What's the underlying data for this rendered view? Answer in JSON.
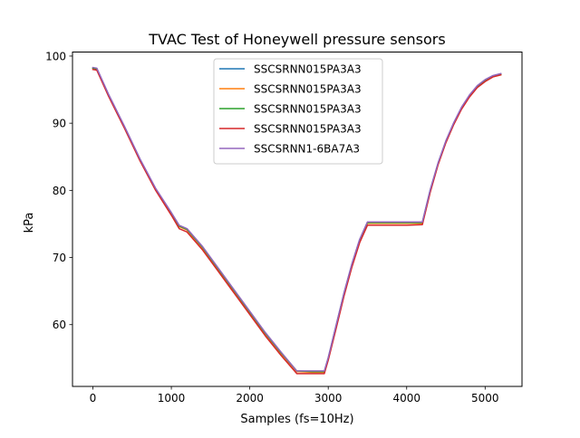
{
  "chart_data": {
    "type": "line",
    "title": "TVAC Test of Honeywell pressure sensors",
    "xlabel": "Samples (fs=10Hz)",
    "ylabel": "kPa",
    "xlim": [
      -260,
      5470
    ],
    "ylim": [
      50.8,
      100.6
    ],
    "xticks": [
      0,
      1000,
      2000,
      3000,
      4000,
      5000
    ],
    "yticks": [
      60,
      70,
      80,
      90,
      100
    ],
    "grid": false,
    "legend_position": "top-center",
    "series": [
      {
        "name": "SSCSRNN015PA3A3",
        "color": "#1f77b4",
        "x": [
          0,
          50,
          200,
          400,
          600,
          800,
          1000,
          1100,
          1200,
          1400,
          1600,
          1800,
          2000,
          2200,
          2400,
          2600,
          2800,
          2950,
          3000,
          3100,
          3200,
          3300,
          3400,
          3500,
          3560,
          4000,
          4200,
          4300,
          4400,
          4500,
          4600,
          4700,
          4800,
          4900,
          5000,
          5100,
          5200
        ],
        "y": [
          98.2,
          98.1,
          94.2,
          89.5,
          84.6,
          80.2,
          76.6,
          74.7,
          74.2,
          71.5,
          68.3,
          65.1,
          61.9,
          58.7,
          55.8,
          53.0,
          53.0,
          53.0,
          55.0,
          59.8,
          64.6,
          68.9,
          72.6,
          75.2,
          75.2,
          75.2,
          75.2,
          80.0,
          84.0,
          87.3,
          90.0,
          92.3,
          94.1,
          95.5,
          96.4,
          97.0,
          97.3
        ]
      },
      {
        "name": "SSCSRNN015PA3A3",
        "color": "#ff7f0e",
        "x": [
          0,
          50,
          200,
          400,
          600,
          800,
          1000,
          1100,
          1200,
          1400,
          1600,
          1800,
          2000,
          2200,
          2400,
          2600,
          2800,
          2950,
          3000,
          3100,
          3200,
          3300,
          3400,
          3500,
          3560,
          4000,
          4200,
          4300,
          4400,
          4500,
          4600,
          4700,
          4800,
          4900,
          5000,
          5100,
          5200
        ],
        "y": [
          98.2,
          98.1,
          94.1,
          89.4,
          84.5,
          80.1,
          76.5,
          74.6,
          74.1,
          71.4,
          68.2,
          65.0,
          61.8,
          58.6,
          55.7,
          53.0,
          52.9,
          52.9,
          54.9,
          59.7,
          64.5,
          68.8,
          72.5,
          75.1,
          75.1,
          75.1,
          75.1,
          79.9,
          83.9,
          87.2,
          89.9,
          92.2,
          94.0,
          95.4,
          96.3,
          96.9,
          97.2
        ]
      },
      {
        "name": "SSCSRNN015PA3A3",
        "color": "#2ca02c",
        "x": [
          0,
          50,
          200,
          400,
          600,
          800,
          1000,
          1100,
          1200,
          1400,
          1600,
          1800,
          2000,
          2200,
          2400,
          2600,
          2800,
          2950,
          3000,
          3100,
          3200,
          3300,
          3400,
          3500,
          3560,
          4000,
          4200,
          4300,
          4400,
          4500,
          4600,
          4700,
          4800,
          4900,
          5000,
          5100,
          5200
        ],
        "y": [
          98.2,
          98.1,
          94.2,
          89.5,
          84.6,
          80.2,
          76.6,
          74.7,
          74.2,
          71.5,
          68.3,
          65.1,
          61.9,
          58.7,
          55.8,
          53.1,
          53.0,
          53.0,
          55.0,
          59.8,
          64.6,
          68.9,
          72.6,
          75.2,
          75.2,
          75.2,
          75.2,
          80.0,
          84.0,
          87.3,
          90.0,
          92.3,
          94.1,
          95.5,
          96.4,
          97.0,
          97.3
        ]
      },
      {
        "name": "SSCSRNN015PA3A3",
        "color": "#d62728",
        "x": [
          0,
          50,
          200,
          400,
          600,
          800,
          1000,
          1100,
          1200,
          1400,
          1600,
          1800,
          2000,
          2200,
          2400,
          2600,
          2800,
          2950,
          3000,
          3100,
          3200,
          3300,
          3400,
          3500,
          3560,
          4000,
          4200,
          4300,
          4400,
          4500,
          4600,
          4700,
          4800,
          4900,
          5000,
          5100,
          5200
        ],
        "y": [
          98.0,
          97.9,
          94.0,
          89.3,
          84.4,
          80.0,
          76.3,
          74.3,
          73.8,
          71.1,
          67.9,
          64.7,
          61.5,
          58.3,
          55.4,
          52.7,
          52.7,
          52.7,
          54.7,
          59.4,
          64.2,
          68.5,
          72.2,
          74.8,
          74.8,
          74.8,
          74.9,
          79.7,
          83.8,
          87.1,
          89.8,
          92.1,
          93.9,
          95.3,
          96.2,
          96.9,
          97.2
        ]
      },
      {
        "name": "SSCSRNN1-6BA7A3",
        "color": "#9467bd",
        "x": [
          0,
          50,
          200,
          400,
          600,
          800,
          1000,
          1100,
          1200,
          1400,
          1600,
          1800,
          2000,
          2200,
          2400,
          2600,
          2800,
          2950,
          3000,
          3100,
          3200,
          3300,
          3400,
          3500,
          3560,
          4000,
          4200,
          4300,
          4400,
          4500,
          4600,
          4700,
          4800,
          4900,
          5000,
          5100,
          5200
        ],
        "y": [
          98.3,
          98.2,
          94.3,
          89.6,
          84.7,
          80.3,
          76.7,
          74.8,
          74.3,
          71.6,
          68.4,
          65.2,
          62.0,
          58.8,
          55.9,
          53.1,
          53.1,
          53.1,
          55.1,
          59.9,
          64.7,
          69.0,
          72.7,
          75.3,
          75.3,
          75.3,
          75.3,
          80.1,
          84.1,
          87.4,
          90.1,
          92.4,
          94.2,
          95.6,
          96.5,
          97.1,
          97.4
        ]
      }
    ]
  }
}
